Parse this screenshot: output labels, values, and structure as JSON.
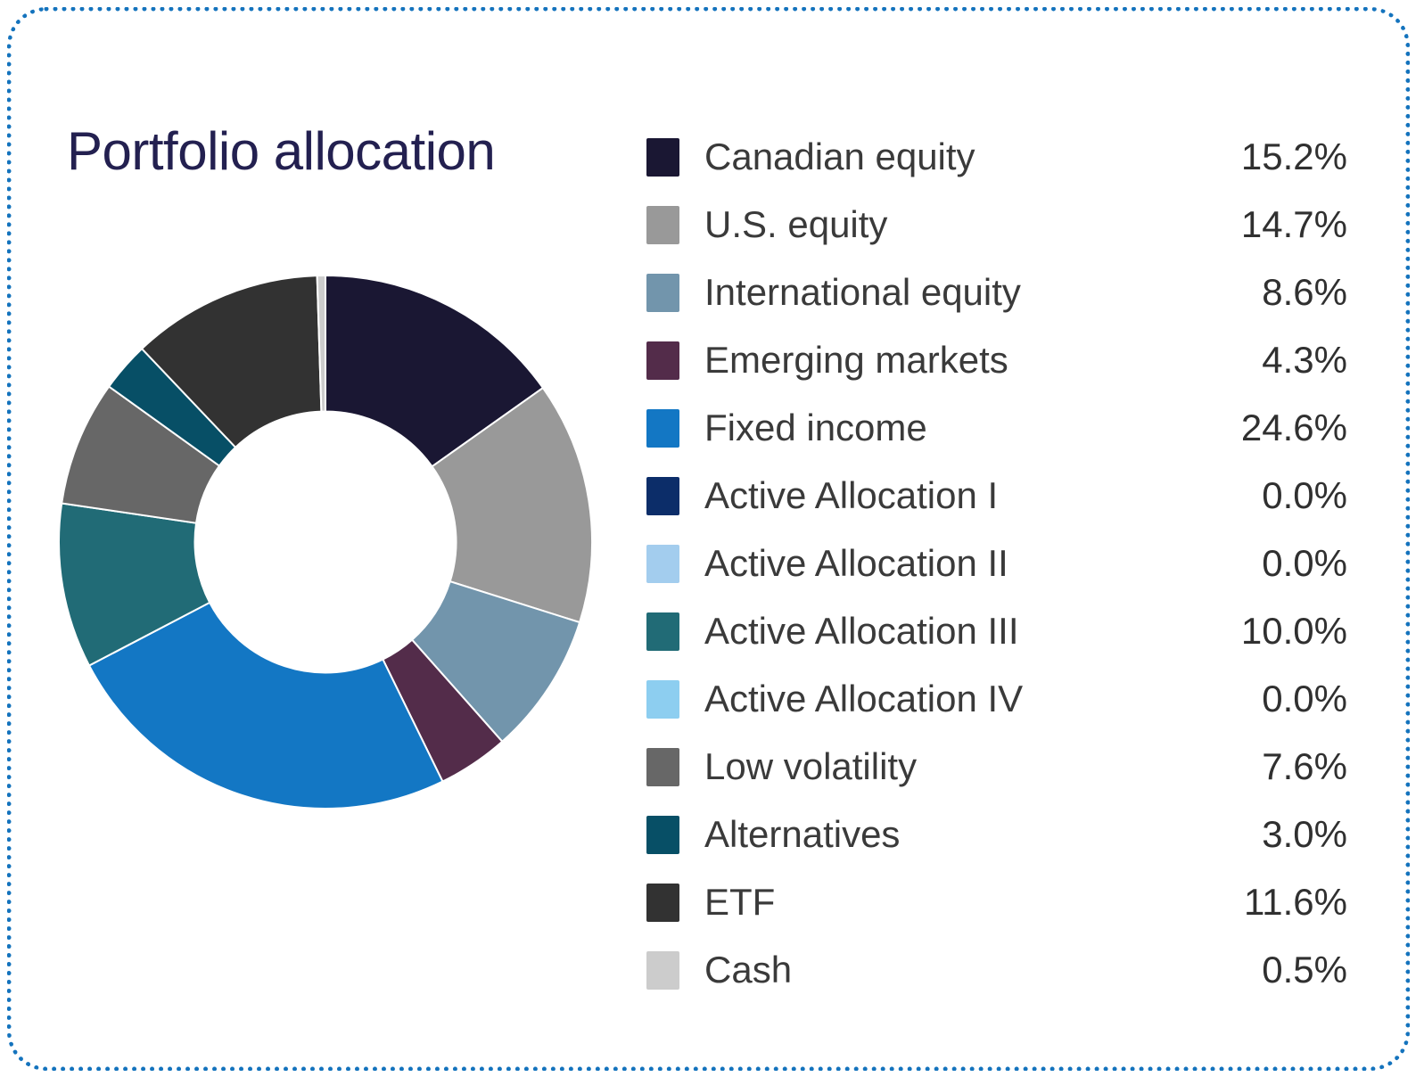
{
  "title": "Portfolio allocation",
  "theme": {
    "card_border_color": "#1473bd",
    "card_background": "#ffffff",
    "title_color": "#232050",
    "legend_text_color": "#3a3a3a"
  },
  "chart_data": {
    "type": "pie",
    "subtype": "donut",
    "title": "Portfolio allocation",
    "legend_position": "right",
    "donut": {
      "start_angle_deg": -90,
      "direction": "clockwise",
      "inner_radius_ratio": 0.49,
      "slice_stroke": "#ffffff",
      "slice_stroke_width": 2
    },
    "items": [
      {
        "label": "Canadian equity",
        "value": 15.2,
        "pct_label": "15.2%",
        "color": "#1a1733"
      },
      {
        "label": "U.S. equity",
        "value": 14.7,
        "pct_label": "14.7%",
        "color": "#999999"
      },
      {
        "label": "International equity",
        "value": 8.6,
        "pct_label": "8.6%",
        "color": "#7295ac"
      },
      {
        "label": "Emerging markets",
        "value": 4.3,
        "pct_label": "4.3%",
        "color": "#532c4a"
      },
      {
        "label": "Fixed income",
        "value": 24.6,
        "pct_label": "24.6%",
        "color": "#1377c4"
      },
      {
        "label": "Active Allocation I",
        "value": 0.0,
        "pct_label": "0.0%",
        "color": "#0c2d69"
      },
      {
        "label": "Active Allocation II",
        "value": 0.0,
        "pct_label": "0.0%",
        "color": "#a3cdee"
      },
      {
        "label": "Active Allocation III",
        "value": 10.0,
        "pct_label": "10.0%",
        "color": "#216b76"
      },
      {
        "label": "Active Allocation IV",
        "value": 0.0,
        "pct_label": "0.0%",
        "color": "#8dcef0"
      },
      {
        "label": "Low volatility",
        "value": 7.6,
        "pct_label": "7.6%",
        "color": "#676767"
      },
      {
        "label": "Alternatives",
        "value": 3.0,
        "pct_label": "3.0%",
        "color": "#074f66"
      },
      {
        "label": "ETF",
        "value": 11.6,
        "pct_label": "11.6%",
        "color": "#323232"
      },
      {
        "label": "Cash",
        "value": 0.5,
        "pct_label": "0.5%",
        "color": "#cccccc"
      }
    ]
  }
}
